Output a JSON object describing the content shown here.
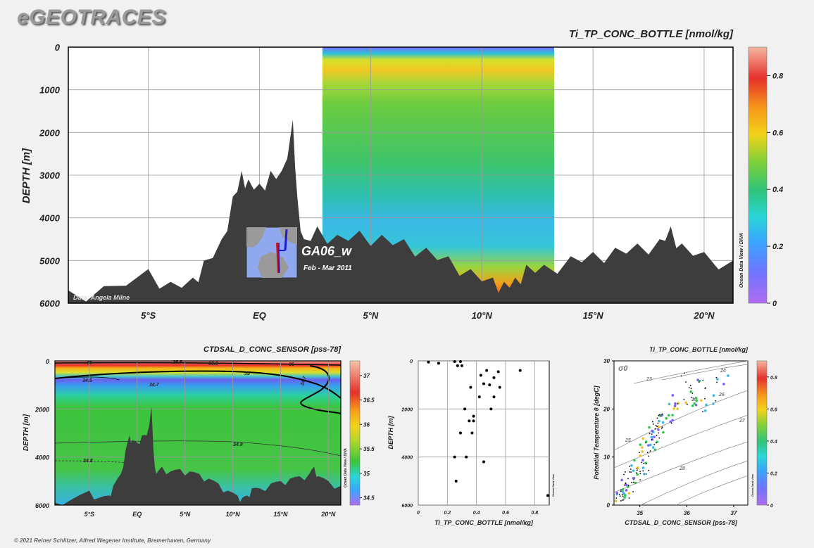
{
  "brand": "eGEOTRACES",
  "copyright": "© 2021 Reiner Schlitzer, Alfred Wegener Institute, Bremerhaven, Germany",
  "colors": {
    "background": "#f1f1f1",
    "seafloor": "#3d3d3d",
    "frame": "#000000"
  },
  "chart_data": [
    {
      "type": "heatmap",
      "title": "Ti_TP_CONC_BOTTLE [nmol/kg]",
      "ylabel": "DEPTH [m]",
      "xlabel": "",
      "x_ticks": [
        "5°S",
        "EQ",
        "5°N",
        "10°N",
        "15°N",
        "20°N"
      ],
      "x_tick_values": [
        -5,
        0,
        5,
        10,
        15,
        20
      ],
      "xlim": [
        -8.6,
        21.3
      ],
      "y_ticks": [
        "0",
        "1000",
        "2000",
        "3000",
        "4000",
        "5000",
        "6000"
      ],
      "ylim": [
        0,
        6000
      ],
      "y_reversed": true,
      "colorbar": {
        "ticks": [
          "0",
          "0.2",
          "0.4",
          "0.6",
          "0.8"
        ],
        "range": [
          0,
          0.9
        ],
        "label": "Ocean Data View / DIVA"
      },
      "data_coverage_lon": [
        2.6,
        12.8
      ],
      "inset": {
        "label": "GA06_w",
        "sublabel": "Feb - Mar 2011"
      },
      "credit": "Data: Angela Milne",
      "bathymetry": {
        "lon": [
          -8.6,
          -7,
          -5,
          -4,
          -3,
          -2.5,
          -1.7,
          -1.2,
          -0.8,
          -0.5,
          0,
          0.5,
          1,
          1.5,
          1.7,
          2,
          2.6,
          3.5,
          4.5,
          5.5,
          6.5,
          7.5,
          8.5,
          9.5,
          10.5,
          11,
          11.5,
          12,
          12.8,
          14,
          15,
          16,
          17,
          18,
          18.5,
          19,
          20,
          21.3
        ],
        "depth": [
          5700,
          5600,
          5200,
          5500,
          5400,
          5000,
          4500,
          3500,
          2900,
          3100,
          3200,
          2900,
          2900,
          1700,
          3500,
          4500,
          4200,
          4400,
          4300,
          4400,
          4500,
          4700,
          4900,
          5200,
          5400,
          5500,
          5400,
          5100,
          5100,
          4900,
          4800,
          4700,
          4600,
          4500,
          4200,
          4600,
          4800,
          5000
        ]
      }
    },
    {
      "type": "heatmap",
      "title": "CTDSAL_D_CONC_SENSOR [pss-78]",
      "ylabel": "DEPTH [m]",
      "x_ticks": [
        "5°S",
        "EQ",
        "5°N",
        "10°N",
        "15°N",
        "20°N"
      ],
      "x_tick_values": [
        -5,
        0,
        5,
        10,
        15,
        20
      ],
      "xlim": [
        -8.6,
        21.3
      ],
      "y_ticks": [
        "0",
        "2000",
        "4000",
        "6000"
      ],
      "ylim": [
        0,
        6000
      ],
      "y_reversed": true,
      "colorbar": {
        "ticks": [
          "34.5",
          "35",
          "35.5",
          "36",
          "36.5",
          "37"
        ],
        "range": [
          34.35,
          37.3
        ],
        "label": "Ocean Data View / DIVA"
      },
      "contour_labels": [
        "36",
        "35.5",
        "35.5",
        "36",
        "35",
        "34.5",
        "34.7",
        "34.7",
        "34.9",
        "34.8"
      ]
    },
    {
      "type": "scatter",
      "xlabel": "Ti_TP_CONC_BOTTLE [nmol/kg]",
      "ylabel": "DEPTH [m]",
      "x_ticks": [
        "0",
        "0.2",
        "0.4",
        "0.6",
        "0.8"
      ],
      "y_ticks": [
        "0",
        "2000",
        "4000",
        "6000"
      ],
      "xlim": [
        0,
        0.9
      ],
      "ylim": [
        0,
        6000
      ],
      "y_reversed": true,
      "side_label": "Ocean Data View",
      "points": [
        [
          0.07,
          50
        ],
        [
          0.14,
          100
        ],
        [
          0.25,
          30
        ],
        [
          0.29,
          30
        ],
        [
          0.27,
          200
        ],
        [
          0.3,
          200
        ],
        [
          0.47,
          400
        ],
        [
          0.55,
          450
        ],
        [
          0.7,
          400
        ],
        [
          0.43,
          600
        ],
        [
          0.52,
          700
        ],
        [
          0.45,
          950
        ],
        [
          0.49,
          1000
        ],
        [
          0.36,
          1100
        ],
        [
          0.56,
          1100
        ],
        [
          0.42,
          1500
        ],
        [
          0.52,
          1500
        ],
        [
          0.5,
          2000
        ],
        [
          0.32,
          2000
        ],
        [
          0.38,
          2300
        ],
        [
          0.35,
          2500
        ],
        [
          0.38,
          2500
        ],
        [
          0.29,
          3000
        ],
        [
          0.37,
          3000
        ],
        [
          0.25,
          4000
        ],
        [
          0.33,
          4000
        ],
        [
          0.45,
          4200
        ],
        [
          0.26,
          5000
        ],
        [
          0.89,
          5600
        ]
      ]
    },
    {
      "type": "scatter",
      "title": "Ti_TP_CONC_BOTTLE [nmol/kg]",
      "xlabel": "CTDSAL_D_CONC_SENSOR [pss-78]",
      "ylabel": "Potential Temperature θ [degC]",
      "x_ticks": [
        "35",
        "36",
        "37"
      ],
      "y_ticks": [
        "0",
        "10",
        "20",
        "30"
      ],
      "xlim": [
        34.45,
        37.3
      ],
      "ylim": [
        0,
        30
      ],
      "density_label": "σ0",
      "isopycnal_labels": [
        "23",
        "24",
        "25",
        "25",
        "26",
        "27",
        "28"
      ],
      "colorbar": {
        "ticks": [
          "0",
          "0.2",
          "0.4",
          "0.6",
          "0.8"
        ],
        "range": [
          0,
          0.9
        ],
        "label": "Ocean Data View"
      }
    }
  ]
}
